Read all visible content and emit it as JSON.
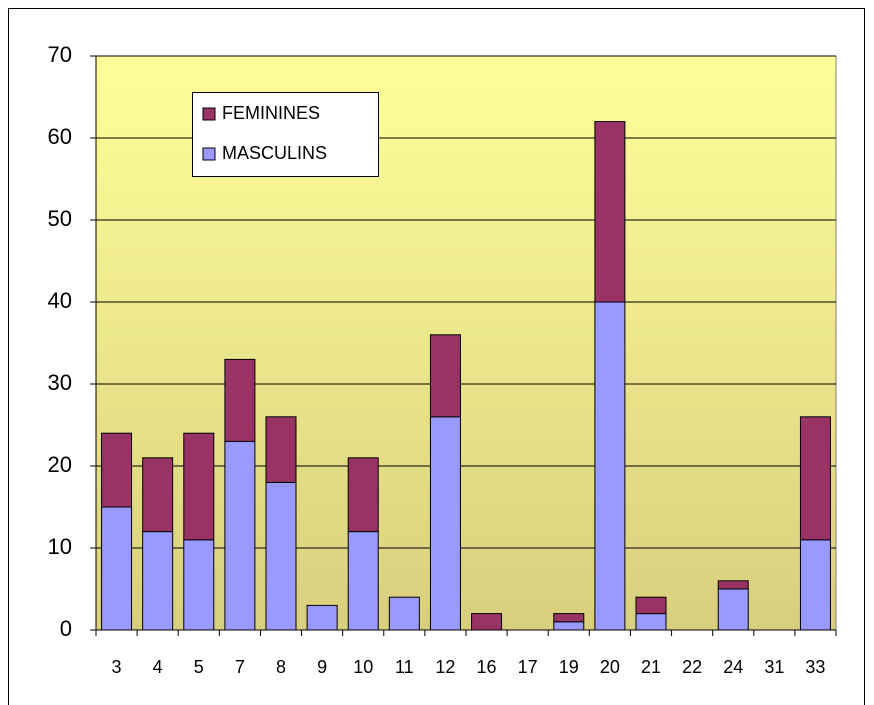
{
  "chart_data": {
    "type": "stacked-bar",
    "categories": [
      "3",
      "4",
      "5",
      "7",
      "8",
      "9",
      "10",
      "11",
      "12",
      "16",
      "17",
      "19",
      "20",
      "21",
      "22",
      "24",
      "31",
      "33"
    ],
    "series": [
      {
        "name": "MASCULINS",
        "color": "#9999ff",
        "values": [
          15,
          12,
          11,
          23,
          18,
          3,
          12,
          4,
          26,
          0,
          0,
          1,
          40,
          2,
          0,
          5,
          0,
          11
        ]
      },
      {
        "name": "FEMININES",
        "color": "#993366",
        "values": [
          9,
          9,
          13,
          10,
          8,
          0,
          9,
          0,
          10,
          2,
          0,
          1,
          22,
          2,
          0,
          1,
          0,
          15
        ]
      }
    ],
    "ylim": [
      0,
      70
    ],
    "yticks": [
      0,
      10,
      20,
      30,
      40,
      50,
      60,
      70
    ],
    "grid": true
  }
}
